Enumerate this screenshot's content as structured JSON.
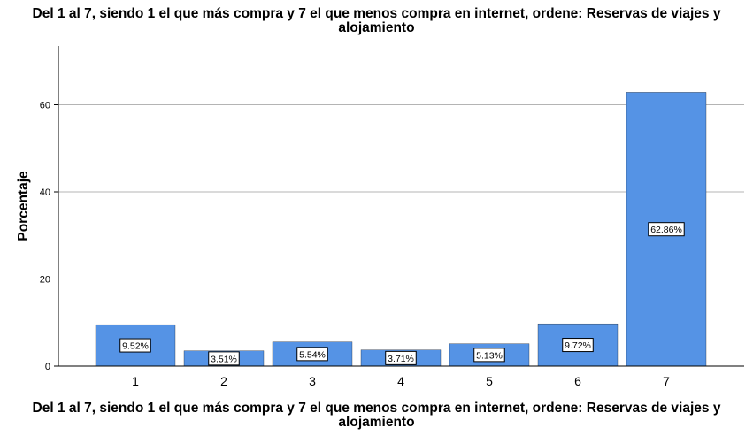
{
  "chart_data": {
    "type": "bar",
    "title": "Del 1 al 7, siendo 1 el que más compra y 7 el que menos compra en internet, ordene: Reservas de viajes y alojamiento",
    "xlabel": "Del 1 al 7, siendo 1 el que más compra y 7 el que menos compra en internet, ordene: Reservas de viajes y alojamiento",
    "ylabel": "Porcentaje",
    "categories": [
      "1",
      "2",
      "3",
      "4",
      "5",
      "6",
      "7"
    ],
    "values": [
      9.52,
      3.51,
      5.54,
      3.71,
      5.13,
      9.72,
      62.86
    ],
    "data_labels": [
      "9.52%",
      "3.51%",
      "5.54%",
      "3.71%",
      "5.13%",
      "9.72%",
      "62.86%"
    ],
    "yticks": [
      0,
      20,
      40,
      60
    ],
    "ylim": [
      0,
      73.5
    ],
    "grid": true,
    "bar_color": "#5593e5"
  }
}
